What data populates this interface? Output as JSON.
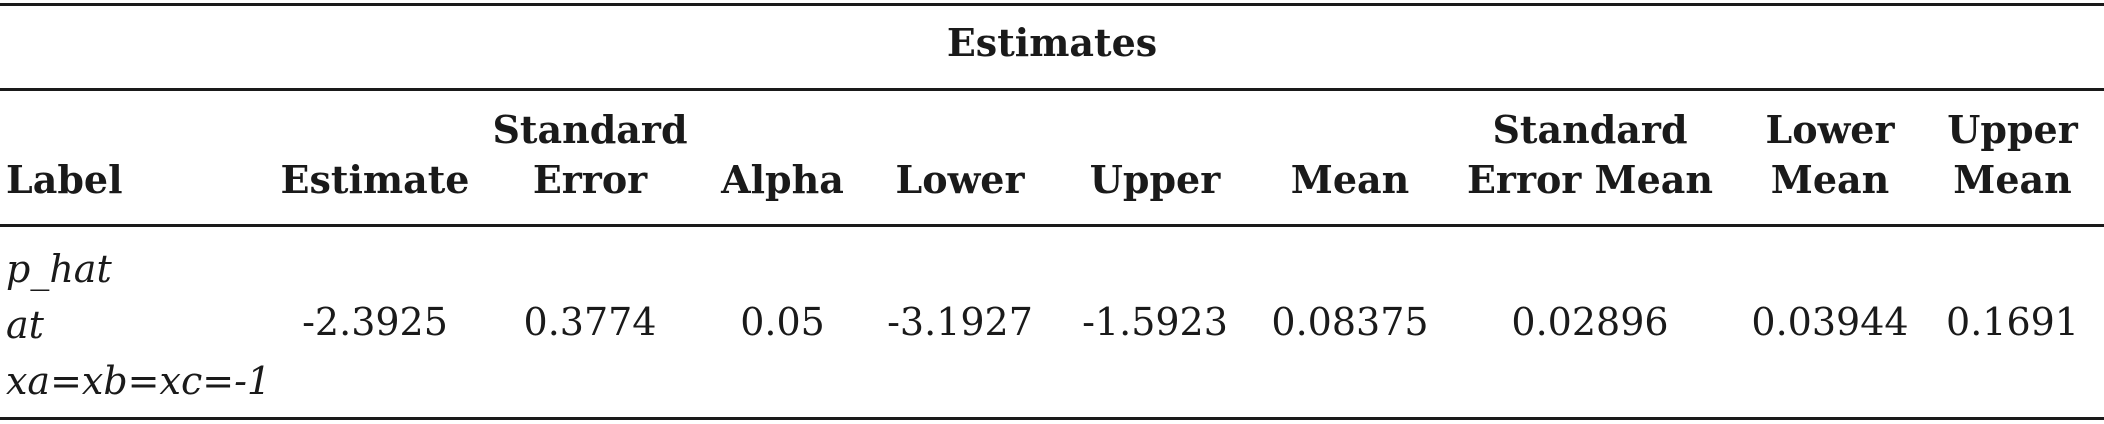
{
  "table": {
    "caption": "Estimates",
    "headers": {
      "label": "Label",
      "estimate": "Estimate",
      "stderr_1": "Standard",
      "stderr_2": "Error",
      "alpha": "Alpha",
      "lower": "Lower",
      "upper": "Upper",
      "mean": "Mean",
      "stderr_mean_1": "Standard",
      "stderr_mean_2": "Error Mean",
      "lower_mean_1": "Lower",
      "lower_mean_2": "Mean",
      "upper_mean_1": "Upper",
      "upper_mean_2": "Mean"
    },
    "row": {
      "label_line1": "p_hat",
      "label_line2": "at",
      "label_line3": "xa=xb=xc=-1",
      "estimate": "-2.3925",
      "stderr": "0.3774",
      "alpha": "0.05",
      "lower": "-3.1927",
      "upper": "-1.5923",
      "mean": "0.08375",
      "stderr_mean": "0.02896",
      "lower_mean": "0.03944",
      "upper_mean": "0.1691"
    }
  }
}
